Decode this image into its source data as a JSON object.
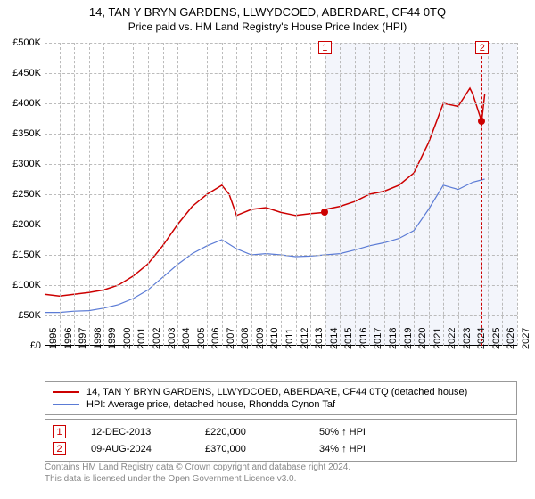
{
  "title": "14, TAN Y BRYN GARDENS, LLWYDCOED, ABERDARE, CF44 0TQ",
  "subtitle": "Price paid vs. HM Land Registry's House Price Index (HPI)",
  "chart": {
    "type": "line",
    "xlim": [
      1995,
      2027
    ],
    "ylim": [
      0,
      500000
    ],
    "ytick_step": 50000,
    "ytick_prefix": "£",
    "ytick_suffix": "K",
    "xticks": [
      1995,
      1996,
      1997,
      1998,
      1999,
      2000,
      2001,
      2002,
      2003,
      2004,
      2005,
      2006,
      2007,
      2008,
      2009,
      2010,
      2011,
      2012,
      2013,
      2014,
      2015,
      2016,
      2017,
      2018,
      2019,
      2020,
      2021,
      2022,
      2023,
      2024,
      2025,
      2026,
      2027
    ],
    "grid_color": "#bbbbbb",
    "background_color": "#ffffff",
    "shade_region": {
      "xstart": 2013.95,
      "xend": 2027,
      "color": "rgba(100,130,200,0.08)"
    },
    "series": [
      {
        "name": "property",
        "label": "14, TAN Y BRYN GARDENS, LLWYDCOED, ABERDARE, CF44 0TQ (detached house)",
        "color": "#cc0000",
        "line_width": 1.5,
        "x": [
          1995,
          1996,
          1997,
          1998,
          1999,
          2000,
          2001,
          2002,
          2003,
          2004,
          2005,
          2006,
          2007,
          2007.5,
          2008,
          2009,
          2010,
          2011,
          2012,
          2013,
          2013.95,
          2014,
          2015,
          2016,
          2017,
          2018,
          2019,
          2020,
          2021,
          2022,
          2023,
          2023.8,
          2024,
          2024.6,
          2024.8
        ],
        "y": [
          85000,
          82000,
          85000,
          88000,
          92000,
          100000,
          115000,
          135000,
          165000,
          200000,
          230000,
          250000,
          265000,
          250000,
          215000,
          225000,
          228000,
          220000,
          215000,
          218000,
          220000,
          225000,
          230000,
          238000,
          250000,
          255000,
          265000,
          285000,
          335000,
          400000,
          395000,
          425000,
          415000,
          370000,
          415000
        ]
      },
      {
        "name": "hpi",
        "label": "HPI: Average price, detached house, Rhondda Cynon Taf",
        "color": "#5b7bd5",
        "line_width": 1.2,
        "x": [
          1995,
          1996,
          1997,
          1998,
          1999,
          2000,
          2001,
          2002,
          2003,
          2004,
          2005,
          2006,
          2007,
          2008,
          2009,
          2010,
          2011,
          2012,
          2013,
          2014,
          2015,
          2016,
          2017,
          2018,
          2019,
          2020,
          2021,
          2022,
          2023,
          2024,
          2024.8
        ],
        "y": [
          55000,
          55000,
          57000,
          58000,
          62000,
          68000,
          78000,
          92000,
          113000,
          134000,
          152000,
          165000,
          175000,
          160000,
          150000,
          152000,
          150000,
          147000,
          148000,
          150000,
          152000,
          158000,
          165000,
          170000,
          177000,
          190000,
          225000,
          265000,
          258000,
          270000,
          275000
        ]
      }
    ],
    "markers": [
      {
        "x": 2013.95,
        "y": 220000,
        "color": "#cc0000"
      },
      {
        "x": 2024.6,
        "y": 370000,
        "color": "#cc0000"
      }
    ],
    "event_lines": [
      {
        "x": 2013.95,
        "label": "1"
      },
      {
        "x": 2024.6,
        "label": "2"
      }
    ]
  },
  "legend": {
    "items": [
      {
        "color": "#cc0000",
        "text": "14, TAN Y BRYN GARDENS, LLWYDCOED, ABERDARE, CF44 0TQ (detached house)"
      },
      {
        "color": "#5b7bd5",
        "text": "HPI: Average price, detached house, Rhondda Cynon Taf"
      }
    ]
  },
  "events": [
    {
      "num": "1",
      "date": "12-DEC-2013",
      "price": "£220,000",
      "hpi": "50% ↑ HPI"
    },
    {
      "num": "2",
      "date": "09-AUG-2024",
      "price": "£370,000",
      "hpi": "34% ↑ HPI"
    }
  ],
  "footer": {
    "line1": "Contains HM Land Registry data © Crown copyright and database right 2024.",
    "line2": "This data is licensed under the Open Government Licence v3.0."
  }
}
